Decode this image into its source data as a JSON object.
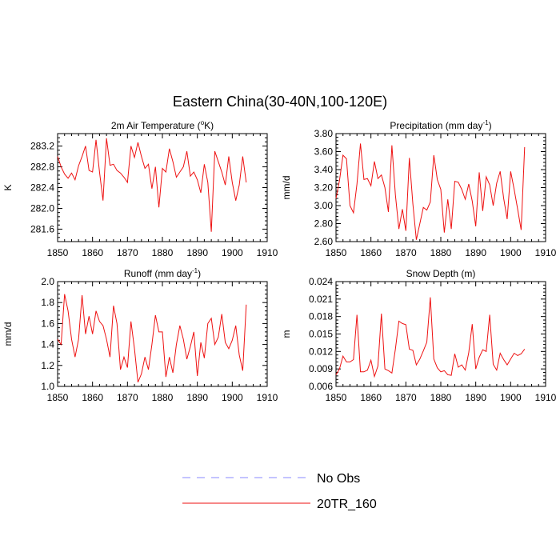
{
  "title": "Eastern China(30-40N,100-120E)",
  "legend": [
    {
      "label": "No Obs",
      "color": "#8a8aff",
      "style": "dashed"
    },
    {
      "label": "20TR_160",
      "color": "#ee1111",
      "style": "solid"
    }
  ],
  "chart_data": [
    {
      "type": "line",
      "title_main": "2m Air Temperature (",
      "title_sup": "o",
      "title_end": "K)",
      "ylabel": "K",
      "xlim": [
        1850,
        1910
      ],
      "ylim": [
        281.36,
        283.44
      ],
      "xticks": [
        1850,
        1860,
        1870,
        1880,
        1890,
        1900,
        1910
      ],
      "yticks": [
        281.6,
        282.0,
        282.4,
        282.8,
        283.2
      ],
      "ytick_labels": [
        "281.6",
        "282.0",
        "282.4",
        "282.8",
        "283.2"
      ],
      "series": [
        {
          "name": "20TR_160",
          "x": [
            1850,
            1851,
            1852,
            1853,
            1854,
            1855,
            1856,
            1857,
            1858,
            1859,
            1860,
            1861,
            1862,
            1863,
            1864,
            1865,
            1866,
            1867,
            1868,
            1869,
            1870,
            1871,
            1872,
            1873,
            1874,
            1875,
            1876,
            1877,
            1878,
            1879,
            1880,
            1881,
            1882,
            1883,
            1884,
            1885,
            1886,
            1887,
            1888,
            1889,
            1890,
            1891,
            1892,
            1893,
            1894,
            1895,
            1896,
            1897,
            1898,
            1899,
            1900,
            1901,
            1902,
            1903,
            1904
          ],
          "values": [
            283.0,
            282.8,
            282.66,
            282.58,
            282.68,
            282.55,
            282.82,
            283.0,
            283.2,
            282.73,
            282.7,
            283.32,
            282.7,
            282.15,
            283.35,
            282.83,
            282.85,
            282.73,
            282.68,
            282.6,
            282.5,
            283.2,
            282.98,
            283.27,
            283.0,
            282.77,
            282.85,
            282.38,
            282.8,
            282.02,
            282.77,
            282.7,
            283.15,
            282.9,
            282.6,
            282.7,
            282.8,
            283.1,
            282.62,
            282.7,
            282.55,
            282.3,
            282.85,
            282.5,
            281.55,
            283.1,
            282.9,
            282.7,
            282.45,
            283.0,
            282.5,
            282.15,
            282.45,
            283.0,
            282.5
          ]
        }
      ]
    },
    {
      "type": "line",
      "title_main": "Precipitation (mm day",
      "title_sup": "-1",
      "title_end": ")",
      "ylabel": "mm/d",
      "xlim": [
        1850,
        1910
      ],
      "ylim": [
        2.6,
        3.8
      ],
      "xticks": [
        1850,
        1860,
        1870,
        1880,
        1890,
        1900,
        1910
      ],
      "yticks": [
        2.6,
        2.8,
        3.0,
        3.2,
        3.4,
        3.6,
        3.8
      ],
      "ytick_labels": [
        "2.60",
        "2.80",
        "3.00",
        "3.20",
        "3.40",
        "3.60",
        "3.80"
      ],
      "series": [
        {
          "name": "20TR_160",
          "x": [
            1850,
            1851,
            1852,
            1853,
            1854,
            1855,
            1856,
            1857,
            1858,
            1859,
            1860,
            1861,
            1862,
            1863,
            1864,
            1865,
            1866,
            1867,
            1868,
            1869,
            1870,
            1871,
            1872,
            1873,
            1874,
            1875,
            1876,
            1877,
            1878,
            1879,
            1880,
            1881,
            1882,
            1883,
            1884,
            1885,
            1886,
            1887,
            1888,
            1889,
            1890,
            1891,
            1892,
            1893,
            1894,
            1895,
            1896,
            1897,
            1898,
            1899,
            1900,
            1901,
            1902,
            1903,
            1904
          ],
          "values": [
            3.08,
            3.28,
            3.56,
            3.52,
            3.0,
            2.92,
            3.24,
            3.69,
            3.29,
            3.3,
            3.22,
            3.49,
            3.3,
            3.34,
            3.2,
            2.93,
            3.67,
            3.12,
            2.74,
            2.96,
            2.72,
            3.53,
            3.02,
            2.62,
            2.8,
            2.98,
            2.95,
            3.04,
            3.56,
            3.29,
            3.18,
            2.7,
            3.07,
            2.74,
            3.27,
            3.26,
            3.18,
            3.07,
            3.24,
            3.05,
            2.77,
            3.37,
            2.94,
            3.32,
            3.23,
            3.0,
            3.25,
            3.38,
            3.08,
            2.85,
            3.38,
            3.18,
            2.96,
            2.73,
            3.65
          ]
        }
      ]
    },
    {
      "type": "line",
      "title_main": "Runoff (mm day",
      "title_sup": "-1",
      "title_end": ")",
      "ylabel": "mm/d",
      "xlim": [
        1850,
        1910
      ],
      "ylim": [
        1.0,
        2.0
      ],
      "xticks": [
        1850,
        1860,
        1870,
        1880,
        1890,
        1900,
        1910
      ],
      "yticks": [
        1.0,
        1.2,
        1.4,
        1.6,
        1.8,
        2.0
      ],
      "ytick_labels": [
        "1.0",
        "1.2",
        "1.4",
        "1.6",
        "1.8",
        "2.0"
      ],
      "series": [
        {
          "name": "20TR_160",
          "x": [
            1850,
            1851,
            1852,
            1853,
            1854,
            1855,
            1856,
            1857,
            1858,
            1859,
            1860,
            1861,
            1862,
            1863,
            1864,
            1865,
            1866,
            1867,
            1868,
            1869,
            1870,
            1871,
            1872,
            1873,
            1874,
            1875,
            1876,
            1877,
            1878,
            1879,
            1880,
            1881,
            1882,
            1883,
            1884,
            1885,
            1886,
            1887,
            1888,
            1889,
            1890,
            1891,
            1892,
            1893,
            1894,
            1895,
            1896,
            1897,
            1898,
            1899,
            1900,
            1901,
            1902,
            1903,
            1904
          ],
          "values": [
            1.45,
            1.4,
            1.88,
            1.72,
            1.45,
            1.28,
            1.45,
            1.87,
            1.5,
            1.67,
            1.5,
            1.72,
            1.62,
            1.58,
            1.45,
            1.28,
            1.77,
            1.6,
            1.16,
            1.28,
            1.18,
            1.62,
            1.36,
            1.04,
            1.12,
            1.28,
            1.16,
            1.4,
            1.68,
            1.52,
            1.52,
            1.09,
            1.28,
            1.13,
            1.4,
            1.58,
            1.45,
            1.26,
            1.38,
            1.52,
            1.1,
            1.42,
            1.27,
            1.6,
            1.65,
            1.4,
            1.47,
            1.69,
            1.42,
            1.36,
            1.44,
            1.58,
            1.3,
            1.15,
            1.78
          ]
        }
      ]
    },
    {
      "type": "line",
      "title_main": "Snow Depth (m)",
      "title_sup": "",
      "title_end": "",
      "ylabel": "m",
      "xlim": [
        1850,
        1910
      ],
      "ylim": [
        0.006,
        0.024
      ],
      "xticks": [
        1850,
        1860,
        1870,
        1880,
        1890,
        1900,
        1910
      ],
      "yticks": [
        0.006,
        0.009,
        0.012,
        0.015,
        0.018,
        0.021,
        0.024
      ],
      "ytick_labels": [
        "0.006",
        "0.009",
        "0.012",
        "0.015",
        "0.018",
        "0.021",
        "0.024"
      ],
      "series": [
        {
          "name": "20TR_160",
          "x": [
            1850,
            1851,
            1852,
            1853,
            1854,
            1855,
            1856,
            1857,
            1858,
            1859,
            1860,
            1861,
            1862,
            1863,
            1864,
            1865,
            1866,
            1867,
            1868,
            1869,
            1870,
            1871,
            1872,
            1873,
            1874,
            1875,
            1876,
            1877,
            1878,
            1879,
            1880,
            1881,
            1882,
            1883,
            1884,
            1885,
            1886,
            1887,
            1888,
            1889,
            1890,
            1891,
            1892,
            1893,
            1894,
            1895,
            1896,
            1897,
            1898,
            1899,
            1900,
            1901,
            1902,
            1903,
            1904
          ],
          "values": [
            0.008,
            0.009,
            0.0112,
            0.0102,
            0.0102,
            0.0106,
            0.0183,
            0.0085,
            0.0085,
            0.0088,
            0.0105,
            0.0077,
            0.0095,
            0.0185,
            0.009,
            0.0087,
            0.0083,
            0.0124,
            0.0172,
            0.0168,
            0.0166,
            0.0124,
            0.0122,
            0.0097,
            0.0107,
            0.0121,
            0.0136,
            0.0213,
            0.0107,
            0.0092,
            0.0085,
            0.0087,
            0.008,
            0.0079,
            0.0116,
            0.0093,
            0.0097,
            0.0088,
            0.0118,
            0.0167,
            0.009,
            0.011,
            0.0123,
            0.012,
            0.0183,
            0.0098,
            0.0088,
            0.0117,
            0.0106,
            0.0097,
            0.0107,
            0.0117,
            0.0113,
            0.0116,
            0.0124
          ]
        }
      ]
    }
  ]
}
